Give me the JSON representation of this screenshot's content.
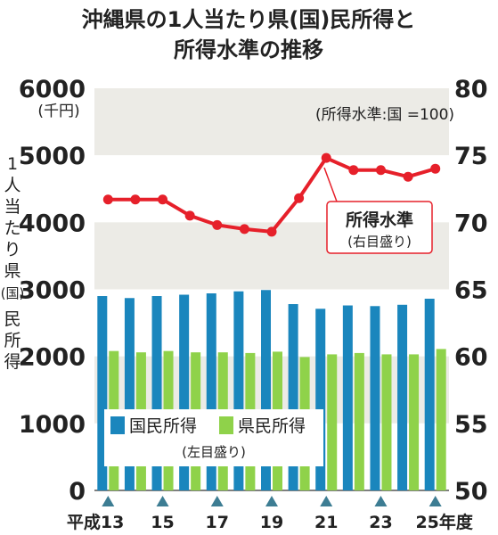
{
  "chart_data": {
    "type": "bar+line",
    "title_line1": "沖縄県の1人当たり県(国)民所得と",
    "title_line2": "所得水準の推移",
    "y_left": {
      "ticks": [
        "6000",
        "5000",
        "4000",
        "3000",
        "2000",
        "1000",
        "0"
      ],
      "unit": "(千円)",
      "label_chars": [
        "1",
        "人",
        "当",
        "た",
        "り",
        "県",
        "(国)",
        "民",
        "所",
        "得"
      ],
      "ylim": [
        0,
        6000
      ]
    },
    "y_right": {
      "ticks": [
        "80",
        "75",
        "70",
        "65",
        "60",
        "55",
        "50"
      ],
      "ylim": [
        50,
        80
      ],
      "note": "(所得水準:国 =100)"
    },
    "x_labels": [
      "平成13",
      "15",
      "17",
      "19",
      "21",
      "23",
      "25年度"
    ],
    "years": [
      13,
      14,
      15,
      16,
      17,
      18,
      19,
      20,
      21,
      22,
      23,
      24,
      25
    ],
    "series": [
      {
        "name": "国民所得",
        "color": "#1a86bd",
        "values": [
          2900,
          2870,
          2900,
          2920,
          2940,
          2970,
          2990,
          2780,
          2710,
          2760,
          2750,
          2770,
          2860
        ]
      },
      {
        "name": "県民所得",
        "color": "#8fd24a",
        "values": [
          2080,
          2060,
          2080,
          2060,
          2060,
          2050,
          2070,
          1990,
          2030,
          2050,
          2030,
          2030,
          2110
        ]
      }
    ],
    "line_series": {
      "name": "所得水準",
      "sub": "(右目盛り)",
      "color": "#e6202a",
      "values": [
        71.7,
        71.7,
        71.7,
        70.5,
        69.8,
        69.5,
        69.3,
        71.8,
        74.8,
        73.9,
        73.9,
        73.4,
        74.0
      ]
    },
    "bar_legend_sub": "(左目盛り)"
  }
}
